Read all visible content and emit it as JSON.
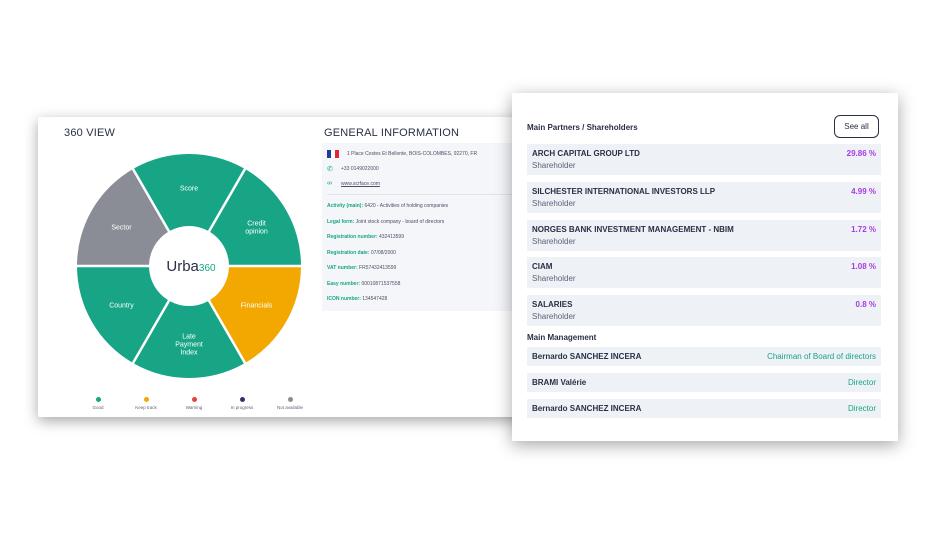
{
  "view360": {
    "title": "360 VIEW",
    "center_brand": "Urba",
    "center_number": "360",
    "segments": [
      {
        "id": "score",
        "lines": [
          "Score"
        ],
        "color": "#17a585"
      },
      {
        "id": "credit-opinion",
        "lines": [
          "Credit",
          "opinion"
        ],
        "color": "#17a585"
      },
      {
        "id": "financials",
        "lines": [
          "Financials"
        ],
        "color": "#f2a800"
      },
      {
        "id": "late-payment-index",
        "lines": [
          "Late",
          "Payment",
          "Index"
        ],
        "color": "#17a585"
      },
      {
        "id": "country",
        "lines": [
          "Country"
        ],
        "color": "#17a585"
      },
      {
        "id": "sector",
        "lines": [
          "Sector"
        ],
        "color": "#8a8d96"
      }
    ],
    "legend": [
      {
        "label": "Good",
        "color": "#17a585"
      },
      {
        "label": "Keep track",
        "color": "#f2a800"
      },
      {
        "label": "Warning",
        "color": "#e8433a"
      },
      {
        "label": "In progress",
        "color": "#3a2e6e"
      },
      {
        "label": "Not available",
        "color": "#8a8d96"
      }
    ]
  },
  "general_info": {
    "title": "GENERAL INFORMATION",
    "address": "1 Place Costes Et Bellonte, BOIS-COLOMBES, 92270, FR",
    "phone": "+33 0149022000",
    "website": "www.scrface.com",
    "flag_colors": [
      "#1d3d9c",
      "#ffffff",
      "#e3253a"
    ],
    "fields": [
      {
        "label": "Activity (main):",
        "value": "6420 - Activities of holding companies"
      },
      {
        "label": "Legal form:",
        "value": "Joint stock company - board of directors"
      },
      {
        "label": "Registration number:",
        "value": "432413599"
      },
      {
        "label": "Registration date:",
        "value": "07/08/2000"
      },
      {
        "label": "VAT number:",
        "value": "FR57432413599"
      },
      {
        "label": "Easy number:",
        "value": "00010871537558"
      },
      {
        "label": "ICON number:",
        "value": "134547428"
      }
    ]
  },
  "partners": {
    "title": "Main Partners / Shareholders",
    "see_all": "See all",
    "items": [
      {
        "name": "ARCH CAPITAL GROUP LTD",
        "role": "Shareholder",
        "pct": "29.86 %"
      },
      {
        "name": "SILCHESTER INTERNATIONAL INVESTORS LLP",
        "role": "Shareholder",
        "pct": "4.99 %"
      },
      {
        "name": "NORGES BANK INVESTMENT MANAGEMENT - NBIM",
        "role": "Shareholder",
        "pct": "1.72 %"
      },
      {
        "name": "CIAM",
        "role": "Shareholder",
        "pct": "1.08 %"
      },
      {
        "name": "SALARIES",
        "role": "Shareholder",
        "pct": "0.8 %"
      }
    ]
  },
  "management": {
    "title": "Main Management",
    "items": [
      {
        "name": "Bernardo SANCHEZ INCERA",
        "role": "Chairman of Board of directors"
      },
      {
        "name": "BRAMI Valérie",
        "role": "Director"
      },
      {
        "name": "Bernardo SANCHEZ INCERA",
        "role": "Director"
      }
    ]
  }
}
